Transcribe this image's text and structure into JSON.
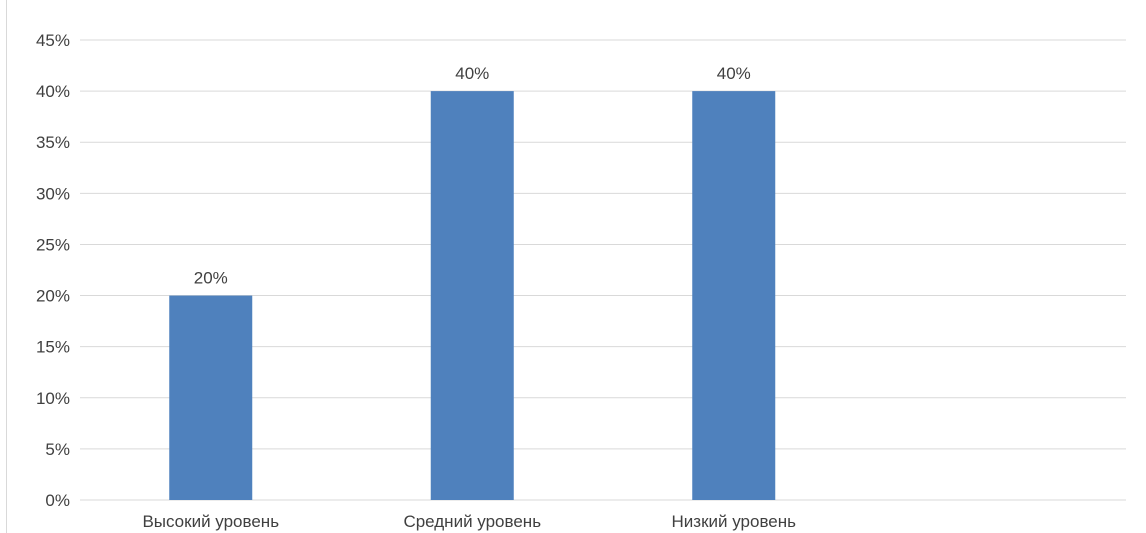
{
  "chart_data": {
    "type": "bar",
    "categories": [
      "Высокий уровень",
      "Средний уровень",
      "Низкий уровень",
      ""
    ],
    "values": [
      0.2,
      0.4,
      0.4,
      null
    ],
    "data_labels": [
      "20%",
      "40%",
      "40%",
      ""
    ],
    "y_ticks": [
      "0%",
      "5%",
      "10%",
      "15%",
      "20%",
      "25%",
      "30%",
      "35%",
      "40%",
      "45%"
    ],
    "ylim": [
      0,
      0.45
    ],
    "grid": true,
    "legend": "none",
    "bar_color": "#4f81bd",
    "grid_color": "#d9d9d9",
    "text_color": "#404040"
  }
}
